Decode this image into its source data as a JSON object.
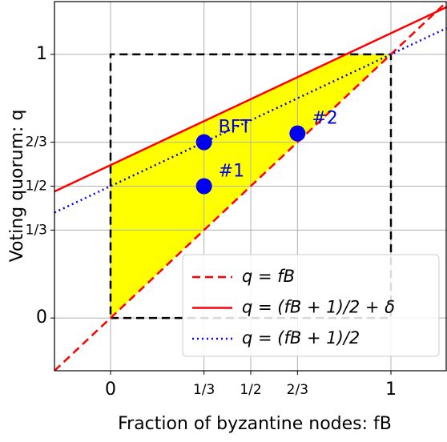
{
  "chart_data": {
    "type": "line",
    "xlabel": "Fraction of byzantine nodes: fB",
    "ylabel": "Voting quorum: q",
    "xlim": [
      -0.2,
      1.2
    ],
    "ylim": [
      -0.2,
      1.2
    ],
    "xticks": [
      0,
      {
        "value": 0.3333,
        "label": "1/3"
      },
      {
        "value": 0.5,
        "label": "1/2"
      },
      {
        "value": 0.6667,
        "label": "2/3"
      },
      1
    ],
    "yticks": [
      0,
      {
        "value": 0.3333,
        "label": "1/3"
      },
      {
        "value": 0.5,
        "label": "1/2"
      },
      {
        "value": 0.6667,
        "label": "2/3"
      },
      1
    ],
    "grid": true,
    "legend": "lower right",
    "series": [
      {
        "name": "q = fB",
        "color": "#ff0000",
        "style": "dashed",
        "x": [
          -0.2,
          1.2
        ],
        "values": [
          -0.2,
          1.2
        ]
      },
      {
        "name": "q = (fB + 1)/2 + δ",
        "color": "#ff0000",
        "style": "solid",
        "x": [
          -0.2,
          1.2
        ],
        "values": [
          0.48,
          1.18
        ]
      },
      {
        "name": "q = (fB + 1)/2",
        "color": "#0000ee",
        "style": "dotted",
        "x": [
          -0.2,
          1.2
        ],
        "values": [
          0.4,
          1.1
        ]
      }
    ],
    "box": {
      "color": "#000000",
      "style": "dashed",
      "x": [
        0,
        1,
        1,
        0,
        0
      ],
      "values": [
        0,
        0,
        1,
        1,
        0
      ]
    },
    "region": {
      "color": "#ffff00",
      "x": [
        0,
        0,
        0.84,
        1
      ],
      "values": [
        0,
        0.58,
        1,
        1
      ]
    },
    "points": {
      "color": "#0000ee",
      "x": [
        0.3333,
        0.3333,
        0.6667
      ],
      "values": [
        0.6667,
        0.5,
        0.7
      ],
      "labels": [
        "BFT",
        "#1",
        "#2"
      ]
    }
  }
}
